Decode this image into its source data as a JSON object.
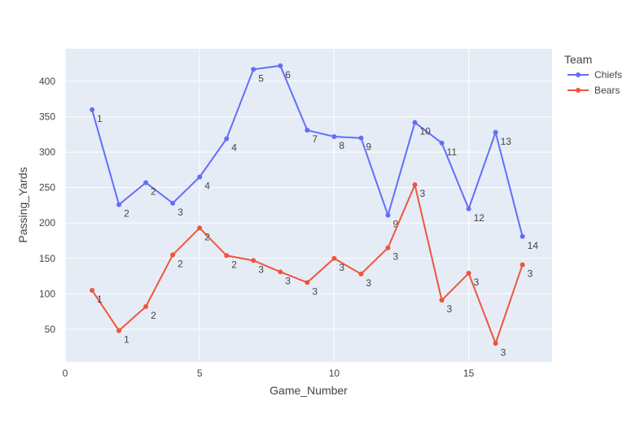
{
  "chart_data": {
    "type": "line",
    "xlabel": "Game_Number",
    "ylabel": "Passing_Yards",
    "xlim": [
      0,
      18.1
    ],
    "ylim": [
      3.9,
      446
    ],
    "x_ticks": [
      0,
      5,
      10,
      15
    ],
    "y_ticks": [
      50,
      100,
      150,
      200,
      250,
      300,
      350,
      400
    ],
    "grid": true,
    "legend": {
      "title": "Team",
      "position": "right"
    },
    "colors": {
      "plot_bg": "#e5ecf6",
      "grid": "#ffffff",
      "text": "#444444"
    },
    "series": [
      {
        "name": "Chiefs",
        "color": "#636efa",
        "x": [
          1,
          2,
          3,
          4,
          5,
          6,
          7,
          8,
          9,
          10,
          11,
          12,
          13,
          14,
          15,
          16,
          17
        ],
        "y": [
          360,
          226,
          257,
          228,
          265,
          319,
          417,
          422,
          331,
          322,
          320,
          211,
          342,
          313,
          220,
          328,
          181
        ],
        "labels": [
          "1",
          "2",
          "2",
          "3",
          "4",
          "4",
          "5",
          "6",
          "7",
          "8",
          "9",
          "9",
          "10",
          "11",
          "12",
          "13",
          "14"
        ]
      },
      {
        "name": "Bears",
        "color": "#ef553b",
        "x": [
          1,
          2,
          3,
          4,
          5,
          6,
          7,
          8,
          9,
          10,
          11,
          12,
          13,
          14,
          15,
          16,
          17
        ],
        "y": [
          105,
          48,
          82,
          155,
          193,
          154,
          147,
          131,
          116,
          150,
          128,
          165,
          254,
          91,
          129,
          30,
          141
        ],
        "labels": [
          "1",
          "1",
          "2",
          "2",
          "2",
          "2",
          "3",
          "3",
          "3",
          "3",
          "3",
          "3",
          "3",
          "3",
          "3",
          "3",
          "3"
        ]
      }
    ]
  }
}
